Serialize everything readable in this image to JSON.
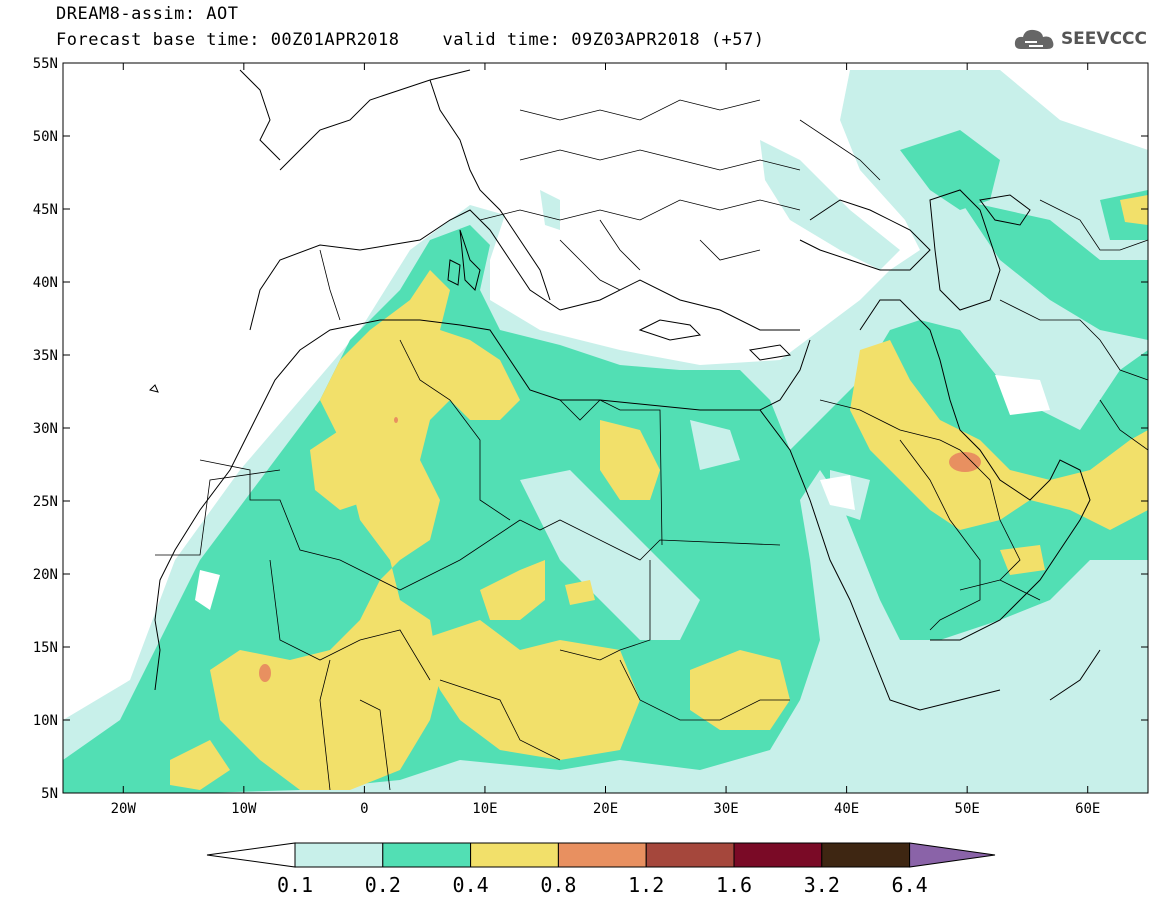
{
  "header": {
    "line1": "DREAM8-assim: AOT",
    "line2": "Forecast base time: 00Z01APR2018    valid time: 09Z03APR2018 (+57)"
  },
  "logo": {
    "text": "SEEVCCC",
    "icon": "cloud-icon",
    "color": "#555555"
  },
  "axes": {
    "lat_labels": [
      "55N",
      "50N",
      "45N",
      "40N",
      "35N",
      "30N",
      "25N",
      "20N",
      "15N",
      "10N",
      "5N"
    ],
    "lat_values": [
      55,
      50,
      45,
      40,
      35,
      30,
      25,
      20,
      15,
      10,
      5
    ],
    "lon_labels": [
      "20W",
      "10W",
      "0",
      "10E",
      "20E",
      "30E",
      "40E",
      "50E",
      "60E"
    ],
    "lon_values": [
      -20,
      -10,
      0,
      10,
      20,
      30,
      40,
      50,
      60
    ],
    "lon_range": [
      -25,
      65
    ],
    "lat_range": [
      5,
      55
    ]
  },
  "colorbar": {
    "labels": [
      "0.1",
      "0.2",
      "0.4",
      "0.8",
      "1.2",
      "1.6",
      "3.2",
      "6.4"
    ],
    "colors": [
      "#ffffff",
      "#c8f0ea",
      "#52dfb4",
      "#f2e06a",
      "#e89060",
      "#a5473c",
      "#7a0a26",
      "#3e2612",
      "#8a63a8"
    ]
  },
  "field_colors": {
    "c1": "#c8f0ea",
    "c2": "#52dfb4",
    "c3": "#f2e06a",
    "c4": "#e89060"
  }
}
